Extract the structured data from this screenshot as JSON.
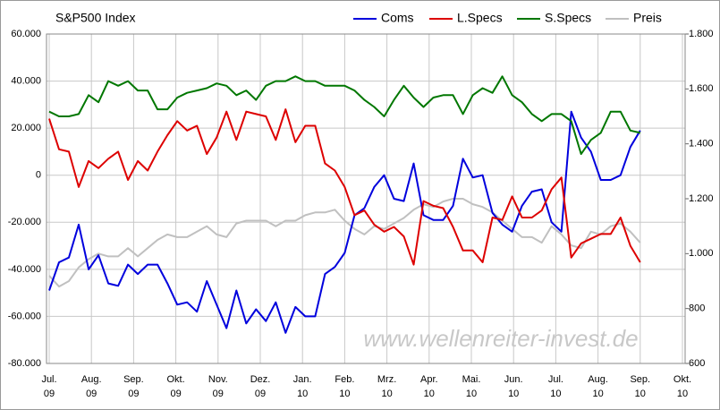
{
  "chart_data": {
    "type": "line",
    "title": "S&P500 Index",
    "watermark": "www.wellenreiter-invest.de",
    "xtick_labels": [
      [
        "Jul.",
        "09"
      ],
      [
        "Aug.",
        "09"
      ],
      [
        "Sep.",
        "09"
      ],
      [
        "Okt.",
        "09"
      ],
      [
        "Nov.",
        "09"
      ],
      [
        "Dez.",
        "09"
      ],
      [
        "Jan.",
        "10"
      ],
      [
        "Feb.",
        "10"
      ],
      [
        "Mrz.",
        "10"
      ],
      [
        "Apr.",
        "10"
      ],
      [
        "Mai.",
        "10"
      ],
      [
        "Jun.",
        "10"
      ],
      [
        "Jul.",
        "10"
      ],
      [
        "Aug.",
        "10"
      ],
      [
        "Sep.",
        "10"
      ],
      [
        "Okt.",
        "10"
      ]
    ],
    "ylim": [
      -80000,
      60000
    ],
    "yticks": [
      {
        "value": 60000,
        "label": "60.000"
      },
      {
        "value": 40000,
        "label": "40.000"
      },
      {
        "value": 20000,
        "label": "20.000"
      },
      0,
      {
        "value": -20000,
        "label": "-20.000"
      },
      {
        "value": -40000,
        "label": "-40.000"
      },
      {
        "value": -60000,
        "label": "-60.000"
      },
      {
        "value": -80000,
        "label": "-80.000"
      }
    ],
    "y2lim": [
      600,
      1800
    ],
    "y2ticks": [
      {
        "value": 1800,
        "label": "1.800"
      },
      {
        "value": 1600,
        "label": "1.600"
      },
      {
        "value": 1400,
        "label": "1.400"
      },
      {
        "value": 1200,
        "label": "1.200"
      },
      {
        "value": 1000,
        "label": "1.000"
      },
      800,
      600
    ],
    "grid": true,
    "series": [
      {
        "name": "Coms",
        "color": "#0000dd",
        "values": [
          -49000,
          -37000,
          -35000,
          -21000,
          -40000,
          -34000,
          -46000,
          -47000,
          -38000,
          -42000,
          -38000,
          -38000,
          -46000,
          -55000,
          -54000,
          -58000,
          -45000,
          -55000,
          -65000,
          -49000,
          -63000,
          -57000,
          -62000,
          -54000,
          -67000,
          -56000,
          -60000,
          -60000,
          -42000,
          -39000,
          -33000,
          -17000,
          -14000,
          -5000,
          0,
          -10000,
          -11000,
          5000,
          -17000,
          -19000,
          -19000,
          -13000,
          7000,
          -1000,
          0,
          -16000,
          -21000,
          -24000,
          -13000,
          -7000,
          -6000,
          -20000,
          -24000,
          27000,
          16000,
          10000,
          -2000,
          -2000,
          0,
          12000,
          19000
        ]
      },
      {
        "name": "L.Specs",
        "color": "#dd0000",
        "values": [
          24000,
          11000,
          10000,
          -5000,
          6000,
          3000,
          7000,
          10000,
          -2000,
          6000,
          2000,
          10000,
          17000,
          23000,
          19000,
          21000,
          9000,
          16000,
          27000,
          15000,
          27000,
          26000,
          25000,
          15000,
          28000,
          14000,
          21000,
          21000,
          5000,
          2000,
          -5000,
          -17000,
          -15000,
          -21000,
          -24000,
          -22000,
          -26000,
          -38000,
          -11000,
          -13000,
          -14000,
          -22000,
          -32000,
          -32000,
          -37000,
          -18000,
          -19000,
          -9000,
          -18000,
          -18000,
          -15000,
          -6000,
          -1000,
          -35000,
          -29000,
          -27000,
          -25000,
          -25000,
          -18000,
          -30000,
          -37000
        ]
      },
      {
        "name": "S.Specs",
        "color": "#007700",
        "values": [
          27000,
          25000,
          25000,
          26000,
          34000,
          31000,
          40000,
          38000,
          40000,
          36000,
          36000,
          28000,
          28000,
          33000,
          35000,
          36000,
          37000,
          39000,
          38000,
          34000,
          36000,
          32000,
          38000,
          40000,
          40000,
          42000,
          40000,
          40000,
          38000,
          38000,
          38000,
          36000,
          32000,
          29000,
          25000,
          32000,
          38000,
          33000,
          29000,
          33000,
          34000,
          34000,
          26000,
          34000,
          37000,
          35000,
          42000,
          34000,
          31000,
          26000,
          23000,
          26000,
          26000,
          23000,
          9000,
          15000,
          18000,
          27000,
          27000,
          19000,
          18000
        ]
      },
      {
        "name": "Preis",
        "color": "#c0c0c0",
        "axis": "y2",
        "values": [
          920,
          880,
          900,
          950,
          980,
          1000,
          990,
          990,
          1020,
          990,
          1020,
          1050,
          1070,
          1060,
          1060,
          1080,
          1100,
          1070,
          1060,
          1110,
          1120,
          1120,
          1120,
          1100,
          1120,
          1120,
          1140,
          1150,
          1150,
          1160,
          1120,
          1090,
          1070,
          1100,
          1090,
          1110,
          1130,
          1160,
          1180,
          1170,
          1190,
          1200,
          1200,
          1180,
          1170,
          1150,
          1120,
          1090,
          1060,
          1060,
          1040,
          1100,
          1070,
          1030,
          1020,
          1080,
          1070,
          1100,
          1110,
          1080,
          1040
        ]
      }
    ]
  }
}
